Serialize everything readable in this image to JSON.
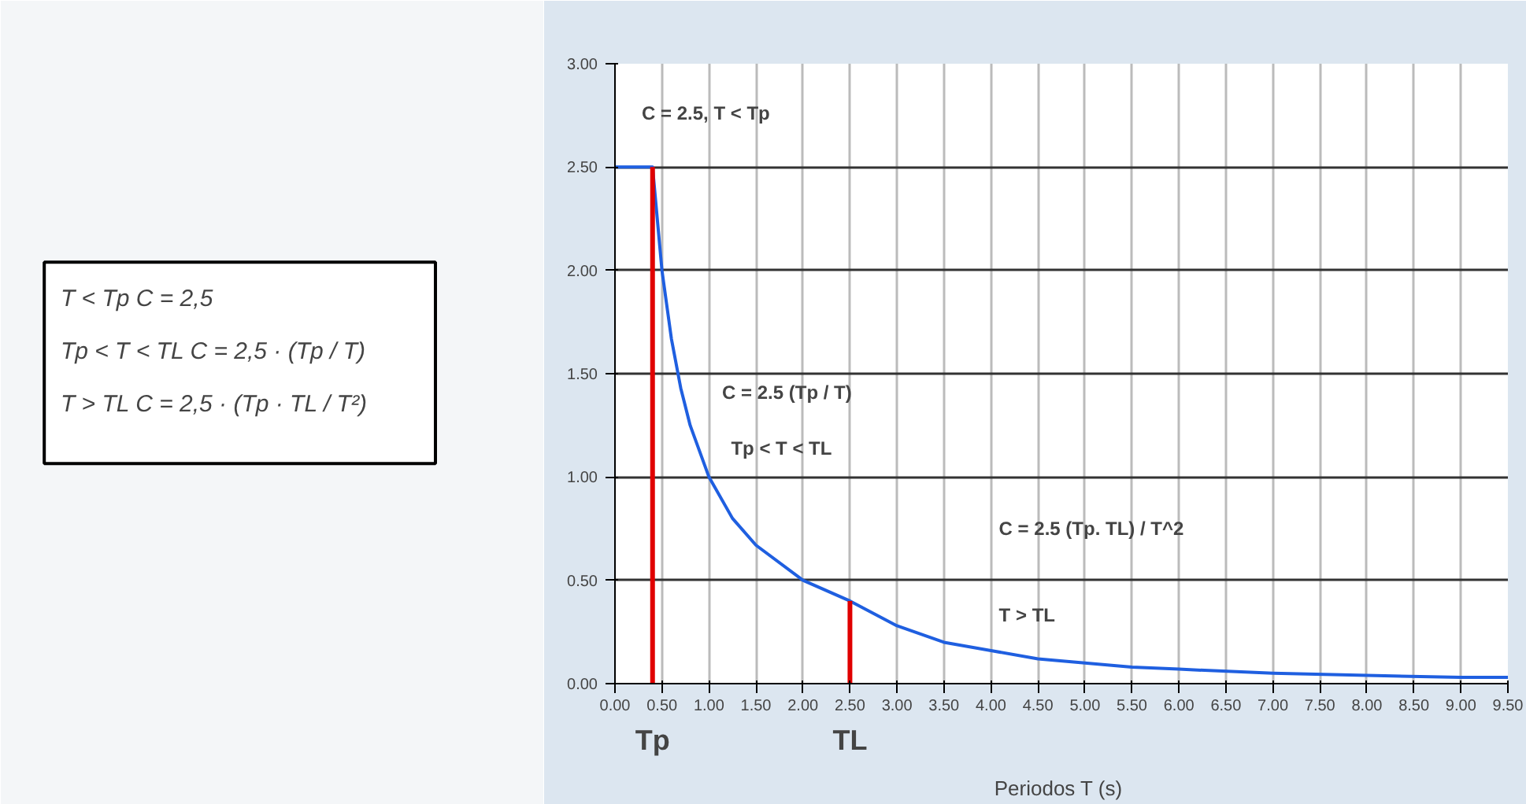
{
  "chart_data": [
    {
      "type": "other",
      "annotations": [
        "T < Tp    C = 2,5",
        "Tp < T < TL        C = 2,5 · (Tp / T)",
        "T > TL    C = 2,5 · (Tp · TL / T²)"
      ]
    },
    {
      "type": "line",
      "xlabel": "Periodos  T (s)",
      "grid": true,
      "marker": "none",
      "line_style": "solid",
      "x": [
        0,
        0.4,
        0.5,
        0.6,
        0.7,
        0.8,
        1,
        1.25,
        1.5,
        2,
        2.5,
        3,
        3.5,
        4,
        4.5,
        5,
        5.5,
        6,
        7,
        8,
        9,
        9.5
      ],
      "series": [
        {
          "color": "#1f5fe0",
          "values": [
            2.5,
            2.5,
            2.0,
            1.67,
            1.43,
            1.25,
            1.0,
            0.8,
            0.67,
            0.5,
            0.4,
            0.28,
            0.2,
            0.16,
            0.12,
            0.1,
            0.08,
            0.07,
            0.05,
            0.04,
            0.03,
            0.03
          ]
        }
      ],
      "xlim": [
        0,
        9.5
      ],
      "ylim": [
        0,
        3
      ],
      "xticks": [
        {
          "value": 0,
          "label": "0.00"
        },
        {
          "value": 0.5,
          "label": "0.50"
        },
        {
          "value": 1,
          "label": "1.00"
        },
        {
          "value": 1.5,
          "label": "1.50"
        },
        {
          "value": 2,
          "label": "2.00"
        },
        {
          "value": 2.5,
          "label": "2.50"
        },
        {
          "value": 3,
          "label": "3.00"
        },
        {
          "value": 3.5,
          "label": "3.50"
        },
        {
          "value": 4,
          "label": "4.00"
        },
        {
          "value": 4.5,
          "label": "4.50"
        },
        {
          "value": 5,
          "label": "5.00"
        },
        {
          "value": 5.5,
          "label": "5.50"
        },
        {
          "value": 6,
          "label": "6.00"
        },
        {
          "value": 6.5,
          "label": "6.50"
        },
        {
          "value": 7,
          "label": "7.00"
        },
        {
          "value": 7.5,
          "label": "7.50"
        },
        {
          "value": 8,
          "label": "8.00"
        },
        {
          "value": 8.5,
          "label": "8.50"
        },
        {
          "value": 9,
          "label": "9.00"
        },
        {
          "value": 9.5,
          "label": "9.50"
        }
      ],
      "yticks": [
        {
          "value": 0,
          "label": "0.00"
        },
        {
          "value": 0.5,
          "label": "0.50"
        },
        {
          "value": 1,
          "label": "1.00"
        },
        {
          "value": 1.5,
          "label": "1.50"
        },
        {
          "value": 2,
          "label": "2.00"
        },
        {
          "value": 2.5,
          "label": "2.50"
        },
        {
          "value": 3,
          "label": "3.00"
        }
      ],
      "ref_lines": [
        {
          "axis": "x",
          "value": 0.4,
          "label": "Tp",
          "color": "#e00000"
        },
        {
          "axis": "x",
          "value": 2.5,
          "label": "TL",
          "color": "#e00000"
        }
      ],
      "annotations": [
        "C = 2.5,  T < Tp",
        "C = 2.5 (Tp / T)",
        "Tp < T < TL",
        "C = 2.5 (Tp. TL) / T^2",
        "T > TL"
      ]
    }
  ]
}
